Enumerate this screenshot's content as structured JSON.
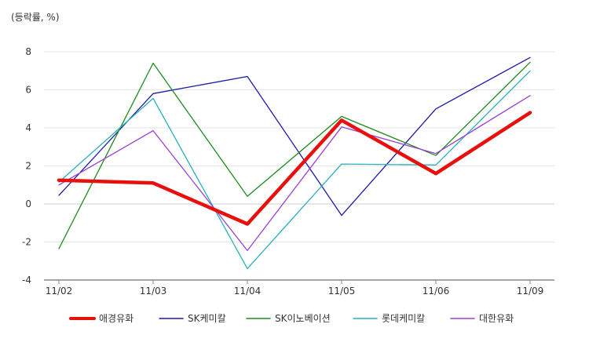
{
  "chart_data": {
    "type": "line",
    "ylabel": "(등락률, %)",
    "categories": [
      "11/02",
      "11/03",
      "11/04",
      "11/05",
      "11/06",
      "11/09"
    ],
    "ylim": [
      -4,
      8
    ],
    "yticks": [
      8,
      6,
      4,
      2,
      0,
      -2,
      -4
    ],
    "yticklabels": [
      "8",
      "6",
      "4",
      "2",
      "0",
      "-2",
      "-4"
    ],
    "grid": true,
    "legend_position": "bottom",
    "series": [
      {
        "name": "애경유화",
        "color": "#e8100d",
        "width": 4.5,
        "values": [
          1.25,
          1.1,
          -1.05,
          4.4,
          1.6,
          4.8
        ]
      },
      {
        "name": "SK케미칼",
        "color": "#1a1aa6",
        "width": 1.3,
        "values": [
          0.45,
          5.8,
          6.7,
          -0.6,
          5.0,
          7.7
        ]
      },
      {
        "name": "SK이노베이션",
        "color": "#1e8a1e",
        "width": 1.3,
        "values": [
          -2.35,
          7.4,
          0.4,
          4.6,
          2.55,
          7.45
        ]
      },
      {
        "name": "롯데케미칼",
        "color": "#2ab0b8",
        "width": 1.3,
        "values": [
          1.15,
          5.55,
          -3.4,
          2.1,
          2.05,
          7.0
        ]
      },
      {
        "name": "대한유화",
        "color": "#9b3fd4",
        "width": 1.3,
        "values": [
          1.0,
          3.85,
          -2.45,
          4.05,
          2.65,
          5.7
        ]
      }
    ]
  }
}
